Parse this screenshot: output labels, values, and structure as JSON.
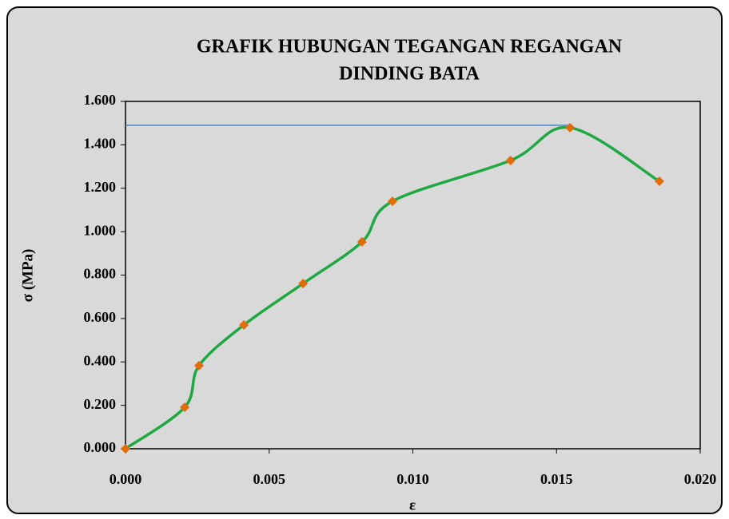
{
  "chart_data": {
    "type": "line",
    "title": [
      "GRAFIK HUBUNGAN TEGANGAN REGANGAN",
      "DINDING BATA"
    ],
    "x_label": "ε",
    "y_label": "σ (MPa)",
    "x": [
      0,
      0.00206,
      0.00256,
      0.00412,
      0.00618,
      0.00823,
      0.00929,
      0.0134,
      0.01547,
      0.01858
    ],
    "series": [
      {
        "color": "#1fa844",
        "marker_color": "#e36c0a",
        "values": [
          0,
          0.191,
          0.383,
          0.57,
          0.761,
          0.953,
          1.14,
          1.328,
          1.479,
          1.232
        ]
      }
    ],
    "hline": {
      "y": 1.49,
      "x": [
        0,
        0.0155
      ],
      "color": "#4f81bd"
    },
    "xlim": [
      0,
      0.02
    ],
    "xticks": [
      {
        "value": 0,
        "label": "0.000"
      },
      {
        "value": 0.005,
        "label": "0.005"
      },
      {
        "value": 0.01,
        "label": "0.010"
      },
      {
        "value": 0.015,
        "label": "0.015"
      },
      {
        "value": 0.02,
        "label": "0.020"
      }
    ],
    "ylim": [
      0,
      1.6
    ],
    "yticks": [
      {
        "value": 0,
        "label": "0.000"
      },
      {
        "value": 0.2,
        "label": "0.200"
      },
      {
        "value": 0.4,
        "label": "0.400"
      },
      {
        "value": 0.6,
        "label": "0.600"
      },
      {
        "value": 0.8,
        "label": "0.800"
      },
      {
        "value": 1.0,
        "label": "1.000"
      },
      {
        "value": 1.2,
        "label": "1.200"
      },
      {
        "value": 1.4,
        "label": "1.400"
      },
      {
        "value": 1.6,
        "label": "1.600"
      }
    ],
    "smooth": true
  }
}
